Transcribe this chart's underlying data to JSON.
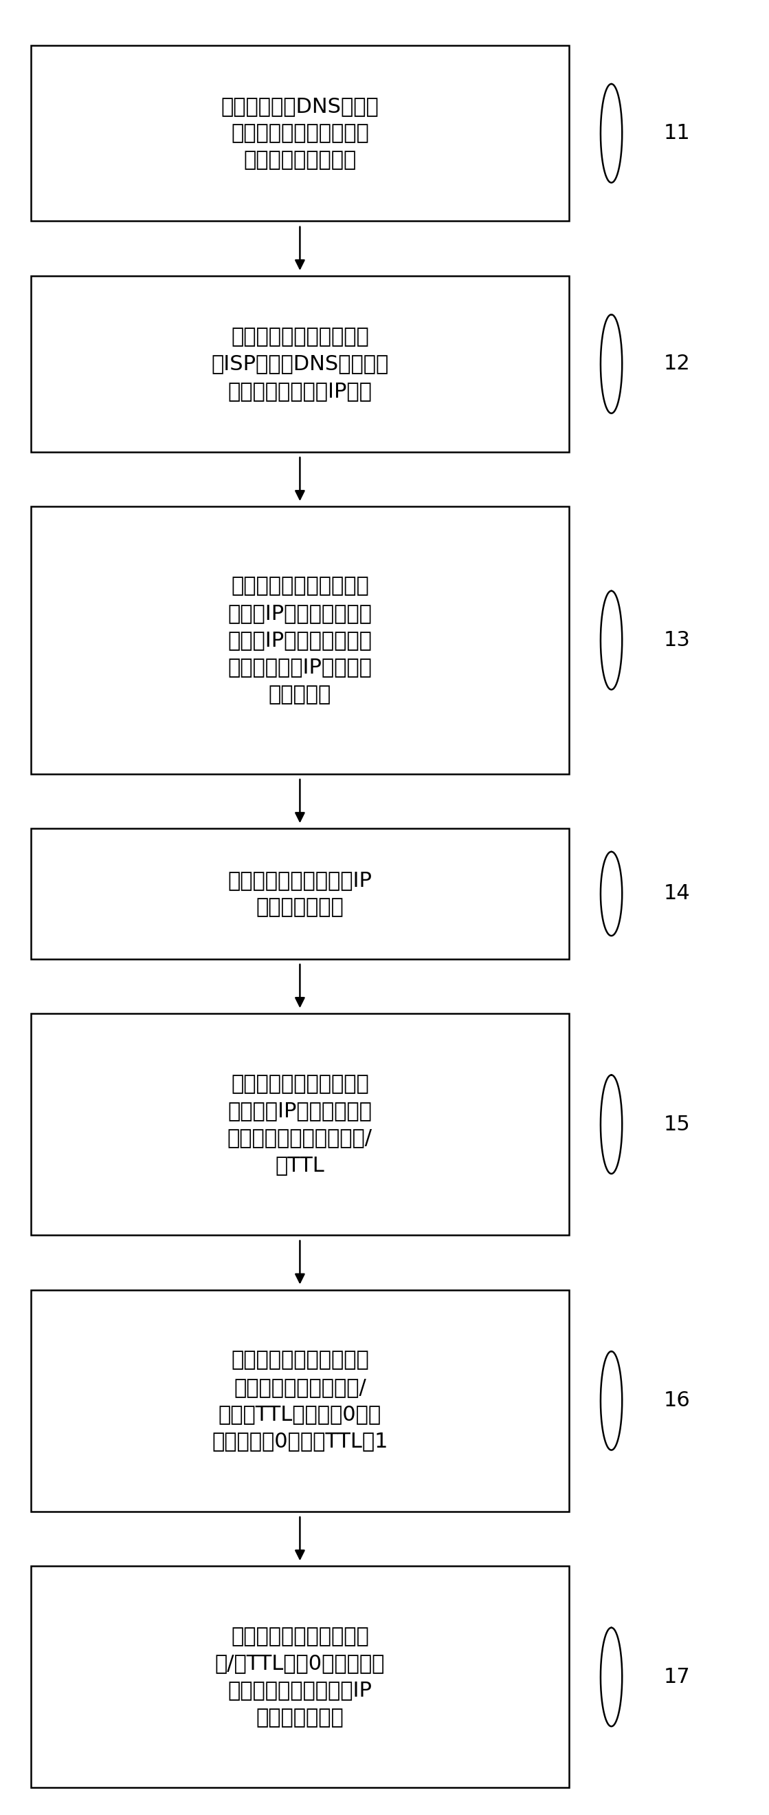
{
  "boxes": [
    {
      "id": 1,
      "label": "用于分析目标DNS的请求\n解析行为，来获取用户所\n请求解析的域名地址",
      "ref": "11",
      "lines": 3
    },
    {
      "id": 2,
      "label": "用于将域名地址分发到多\n个ISP线路的DNS上查询域\n名地址对应的多个IP地址",
      "ref": "12",
      "lines": 3
    },
    {
      "id": 3,
      "label": "用于根据预设的优化算法\n对多个IP地址进行量排序\n，多个IP地址的顺序指示\n用户访问多个IP地址的访\n问质量高低",
      "ref": "13",
      "lines": 5
    },
    {
      "id": 4,
      "label": "用于将访问质量最高的IP\n地址反馈给用户",
      "ref": "14",
      "lines": 2
    },
    {
      "id": 5,
      "label": "用于将域名地址已经排序\n好的多个IP地址进行本地\n存储，并标记存储时间和/\n或TTL",
      "ref": "15",
      "lines": 4
    },
    {
      "id": 6,
      "label": "用于判断存储时间是否超\n过预设的超期时间，和/\n或判断TTL是否等于0，且\n如果不等于0，则将TTL减1",
      "ref": "16",
      "lines": 4
    },
    {
      "id": 7,
      "label": "在存储时间超过超期时间\n和/或TTL等于0时，将域名\n地址已经排序好的多个IP\n地址从本地删除",
      "ref": "17",
      "lines": 4
    }
  ],
  "background_color": "#ffffff",
  "box_facecolor": "#ffffff",
  "box_edgecolor": "#000000",
  "text_color": "#000000",
  "arrow_color": "#000000",
  "ref_color": "#000000",
  "fontsize": 22,
  "ref_fontsize": 22,
  "linewidth": 1.8
}
